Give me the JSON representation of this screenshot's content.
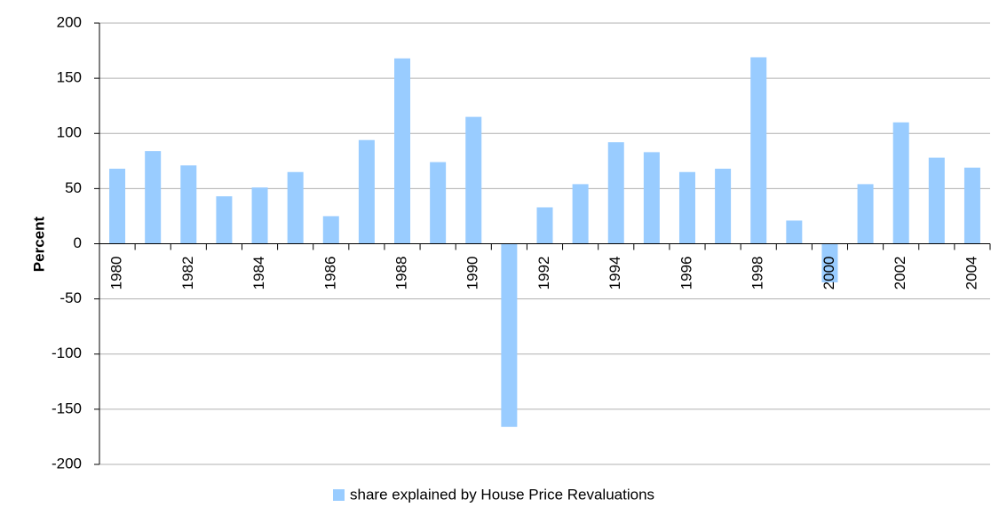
{
  "chart_data": {
    "type": "bar",
    "y_label": "Percent",
    "categories": [
      "1980",
      null,
      "1982",
      null,
      "1984",
      null,
      "1986",
      null,
      "1988",
      null,
      "1990",
      null,
      "1992",
      null,
      "1994",
      null,
      "1996",
      null,
      "1998",
      null,
      "2000",
      null,
      "2002",
      null,
      "2004"
    ],
    "series": [
      {
        "name": "share explained by House Price Revaluations",
        "color": "#99ccff",
        "values": [
          68,
          84,
          71,
          43,
          51,
          65,
          25,
          94,
          168,
          74,
          115,
          -166,
          33,
          54,
          92,
          83,
          65,
          68,
          169,
          21,
          -35,
          54,
          110,
          78,
          69
        ]
      }
    ],
    "ylim": [
      -200,
      200
    ],
    "yticks": [
      -200,
      -150,
      -100,
      -50,
      0,
      50,
      100,
      150,
      200
    ],
    "grid": true,
    "legend": "bottom"
  }
}
